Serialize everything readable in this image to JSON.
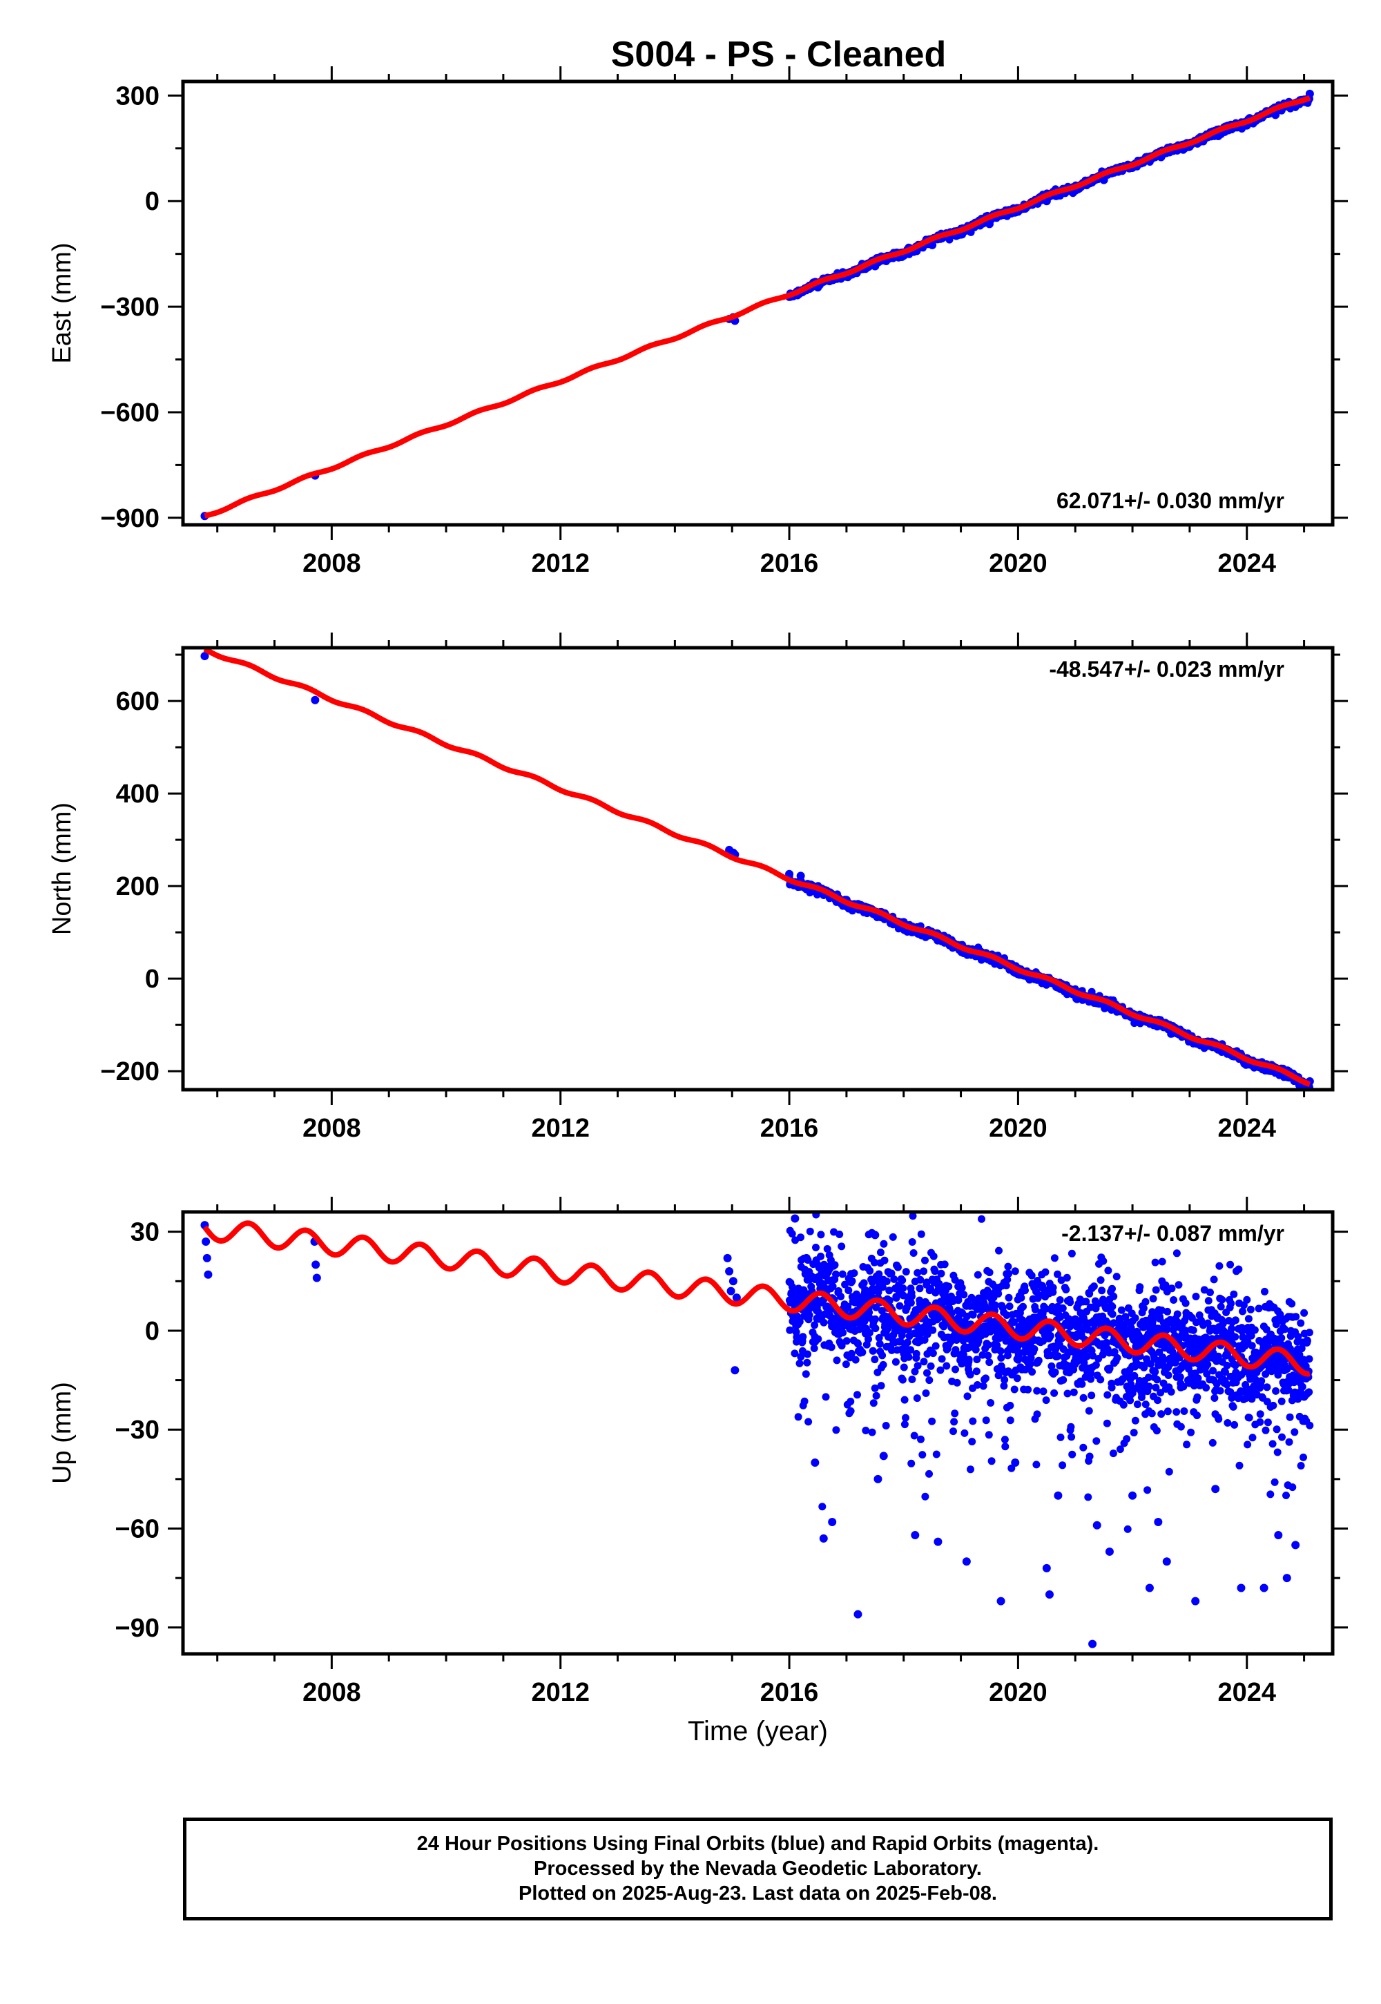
{
  "chart_data": [
    {
      "type": "scatter",
      "title": "S004  - PS - Cleaned",
      "ylabel": "East (mm)",
      "xlabel": "",
      "xlim": [
        2005.4,
        2025.5
      ],
      "ylim": [
        -920,
        340
      ],
      "xticks": [
        2008,
        2012,
        2016,
        2020,
        2024
      ],
      "yticks": [
        -900,
        -600,
        -300,
        0,
        300
      ],
      "rate_label": "62.071+/- 0.030 mm/yr",
      "rate_position": "bottom-right",
      "series": [
        {
          "color": "#0000ff",
          "type": "scatter",
          "x": [
            2005.78,
            2007.71,
            2014.95,
            2015.02,
            2015.05,
            2016.0,
            2016.5,
            2017.0,
            2017.5,
            2018.0,
            2018.5,
            2019.0,
            2019.5,
            2020.0,
            2020.5,
            2021.0,
            2021.5,
            2022.0,
            2022.5,
            2023.0,
            2023.5,
            2024.0,
            2024.5,
            2024.8,
            2025.1
          ],
          "y": [
            -895,
            -780,
            -335,
            -330,
            -340,
            -272,
            -245,
            -215,
            -185,
            -155,
            -125,
            -95,
            -65,
            -30,
            0,
            30,
            60,
            95,
            125,
            155,
            185,
            215,
            245,
            275,
            305
          ]
        },
        {
          "color": "#ff0000",
          "type": "line",
          "x": [
            2005.78,
            2025.1
          ],
          "y": [
            -895,
            297
          ]
        }
      ]
    },
    {
      "type": "scatter",
      "title": "",
      "ylabel": "North (mm)",
      "xlabel": "",
      "xlim": [
        2005.4,
        2025.5
      ],
      "ylim": [
        -240,
        715
      ],
      "xticks": [
        2008,
        2012,
        2016,
        2020,
        2024
      ],
      "yticks": [
        -200,
        0,
        200,
        400,
        600
      ],
      "rate_label": "-48.547+/- 0.023 mm/yr",
      "rate_position": "top-right",
      "series": [
        {
          "color": "#0000ff",
          "type": "scatter",
          "x": [
            2005.78,
            2007.71,
            2014.95,
            2015.02,
            2015.05,
            2016.0,
            2016.2,
            2016.5,
            2017.0,
            2017.5,
            2018.0,
            2018.5,
            2019.0,
            2019.5,
            2020.0,
            2020.5,
            2021.0,
            2021.5,
            2022.0,
            2022.5,
            2023.0,
            2023.5,
            2024.0,
            2024.5,
            2025.1
          ],
          "y": [
            697,
            602,
            278,
            272,
            268,
            226,
            222,
            195,
            170,
            145,
            122,
            96,
            72,
            45,
            22,
            -3,
            -25,
            -52,
            -76,
            -100,
            -125,
            -150,
            -172,
            -197,
            -222
          ]
        },
        {
          "color": "#ff0000",
          "type": "line",
          "x": [
            2005.78,
            2025.1
          ],
          "y": [
            712,
            -225
          ]
        }
      ]
    },
    {
      "type": "scatter",
      "title": "",
      "ylabel": "Up (mm)",
      "xlabel": "Time (year)",
      "xlim": [
        2005.4,
        2025.5
      ],
      "ylim": [
        -98,
        36
      ],
      "xticks": [
        2008,
        2012,
        2016,
        2020,
        2024
      ],
      "yticks": [
        -90,
        -60,
        -30,
        0,
        30
      ],
      "rate_label": "-2.137+/- 0.087 mm/yr",
      "rate_position": "top-right",
      "series": [
        {
          "color": "#0000ff",
          "type": "scatter",
          "x": [
            2005.78,
            2005.8,
            2005.82,
            2005.84,
            2007.7,
            2007.72,
            2007.74,
            2014.92,
            2014.95,
            2014.98,
            2015.02,
            2015.05,
            2015.08,
            2016.1,
            2016.3,
            2016.45,
            2016.6,
            2016.75,
            2017.2,
            2017.5,
            2017.55,
            2017.65,
            2018.2,
            2018.6,
            2019.1,
            2019.7,
            2019.95,
            2020.5,
            2020.55,
            2020.7,
            2021.3,
            2021.38,
            2021.6,
            2022.0,
            2022.3,
            2022.45,
            2022.6,
            2023.1,
            2023.45,
            2023.9,
            2024.3,
            2024.55,
            2024.7,
            2024.85,
            2025.0
          ],
          "y": [
            32,
            27,
            22,
            17,
            27,
            20,
            16,
            22,
            18,
            12,
            15,
            -12,
            10,
            34,
            22,
            -40,
            -63,
            -58,
            -86,
            29,
            -45,
            -38,
            -62,
            -64,
            -70,
            -82,
            -40,
            -72,
            -80,
            -50,
            -95,
            -59,
            -67,
            -50,
            -78,
            -58,
            -70,
            -82,
            -48,
            -78,
            -78,
            -62,
            -75,
            -65,
            -20
          ]
        },
        {
          "color": "#ff0000",
          "type": "line",
          "x": [
            2005.78,
            2025.1
          ],
          "y": [
            31,
            -10
          ]
        }
      ]
    }
  ],
  "footer": {
    "line1": "24 Hour Positions Using Final Orbits (blue) and Rapid Orbits (magenta).",
    "line2": "Processed by the Nevada Geodetic Laboratory.",
    "line3": "Plotted on 2025-Aug-23. Last data on 2025-Feb-08."
  }
}
